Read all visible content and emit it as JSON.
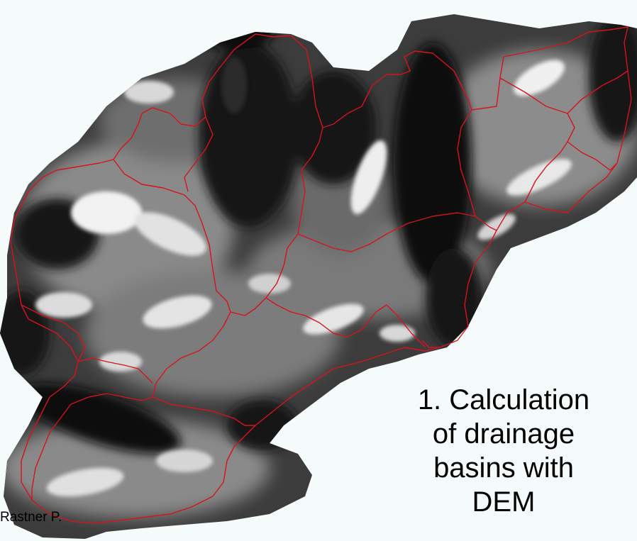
{
  "map": {
    "type": "digital elevation model with drainage basin boundaries",
    "colors": {
      "background": "#f5fbfb",
      "basin_boundary": "#d4141e",
      "low_elevation": "#0a0a0a",
      "high_elevation": "#ffffff"
    }
  },
  "caption": {
    "lines": [
      "1. Calculation",
      "of drainage",
      "basins with",
      "DEM"
    ]
  },
  "credit": {
    "text": "Rastner P."
  }
}
